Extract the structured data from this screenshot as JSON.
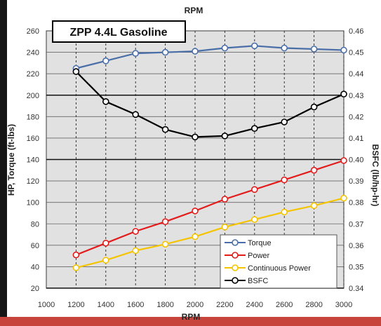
{
  "chart_data": {
    "type": "line",
    "title": "ZPP 4.4L Gasoline",
    "top_axis_label": "RPM",
    "xlabel": "RPM",
    "ylabel": "HP, Torque (ft-lbs)",
    "y2label": "BSFC (lb/hp-hr)",
    "x": [
      1200,
      1400,
      1600,
      1800,
      2000,
      2200,
      2400,
      2600,
      2800,
      3000
    ],
    "xlim": [
      1000,
      3000
    ],
    "x_ticks": [
      "1000",
      "1200",
      "1400",
      "1600",
      "1800",
      "2000",
      "2200",
      "2400",
      "2600",
      "2800",
      "3000"
    ],
    "y_tick_labels": [
      "260",
      "240",
      "220",
      "200",
      "180",
      "160",
      "140",
      "120",
      "100",
      "80",
      "60",
      "40",
      "20"
    ],
    "y2_tick_labels": [
      "0.46",
      "0.45",
      "0.44",
      "0.43",
      "0.42",
      "0.41",
      "0.40",
      "0.39",
      "0.38",
      "0.37",
      "0.36",
      "0.35",
      "0.34"
    ],
    "ylim": [
      20,
      260
    ],
    "y2lim": [
      0.34,
      0.46
    ],
    "grid": true,
    "legend_position": "bottom-right",
    "series": [
      {
        "name": "Torque",
        "axis": "left",
        "color": "#4a6fa8",
        "values": [
          225,
          232,
          239,
          240,
          241,
          244,
          246,
          244,
          243,
          242
        ]
      },
      {
        "name": "Power",
        "axis": "left",
        "color": "#e31b1b",
        "values": [
          51,
          62,
          73,
          82,
          92,
          103,
          112,
          121,
          130,
          139
        ]
      },
      {
        "name": "Continuous Power",
        "axis": "left",
        "color": "#f5c400",
        "values": [
          39,
          46,
          55,
          61,
          68,
          77,
          84,
          91,
          97,
          104
        ]
      },
      {
        "name": "BSFC",
        "axis": "right",
        "color": "#000000",
        "values": [
          0.441,
          0.427,
          0.421,
          0.414,
          0.4105,
          0.411,
          0.4145,
          0.4175,
          0.4245,
          0.4305
        ]
      }
    ]
  }
}
